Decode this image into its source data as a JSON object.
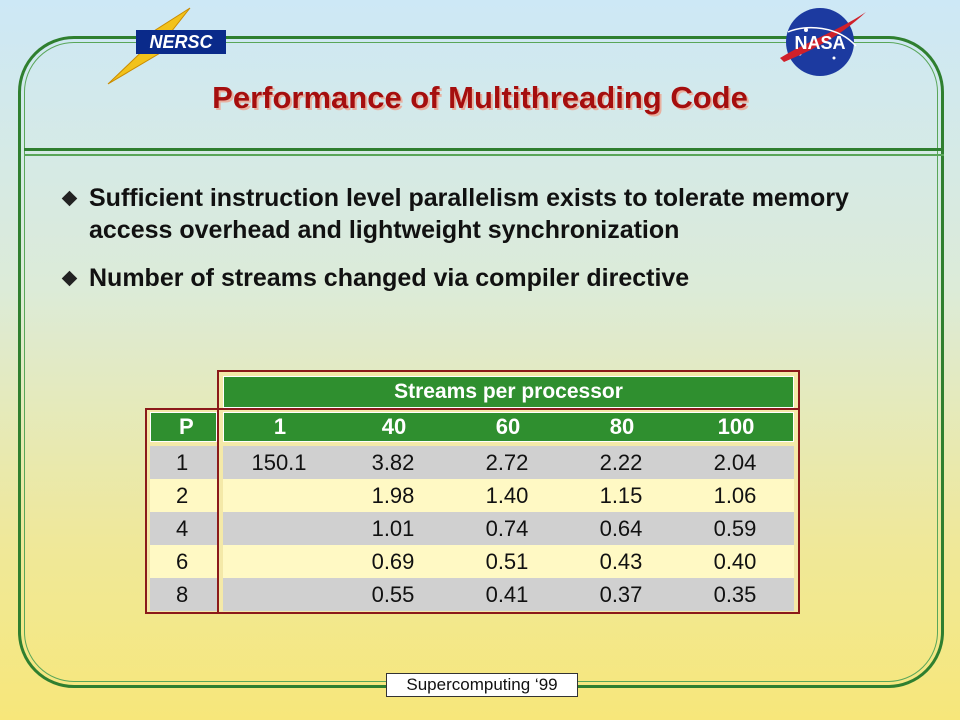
{
  "logos": {
    "nersc": "NERSC",
    "nasa": "NASA"
  },
  "slide": {
    "title": "Performance of Multithreading Code",
    "bullets": [
      "Sufficient instruction level parallelism exists to tolerate memory access overhead and lightweight synchronization",
      "Number of streams changed via compiler directive"
    ]
  },
  "table": {
    "group_header": "Streams per processor",
    "row_header": "P",
    "columns": [
      "1",
      "40",
      "60",
      "80",
      "100"
    ],
    "rows": [
      {
        "p": "1",
        "values": [
          "150.1",
          "3.82",
          "2.72",
          "2.22",
          "2.04"
        ]
      },
      {
        "p": "2",
        "values": [
          "",
          "1.98",
          "1.40",
          "1.15",
          "1.06"
        ]
      },
      {
        "p": "4",
        "values": [
          "",
          "1.01",
          "0.74",
          "0.64",
          "0.59"
        ]
      },
      {
        "p": "6",
        "values": [
          "",
          "0.69",
          "0.51",
          "0.43",
          "0.40"
        ]
      },
      {
        "p": "8",
        "values": [
          "",
          "0.55",
          "0.41",
          "0.37",
          "0.35"
        ]
      }
    ]
  },
  "footer": "Supercomputing ‘99",
  "colors": {
    "frame": "#2f7f2f",
    "title": "#a50e0e",
    "header_bg": "#2f8f2f",
    "table_border": "#8b1a1a"
  }
}
